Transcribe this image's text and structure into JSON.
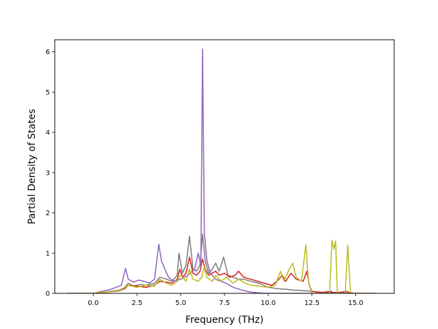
{
  "chart_data": {
    "type": "line",
    "xlabel": "Frequency (THz)",
    "ylabel": "Partial Density of States",
    "xlim": [
      -2.2,
      17.2
    ],
    "ylim": [
      0,
      6.3
    ],
    "x_ticks": [
      0.0,
      2.5,
      5.0,
      7.5,
      10.0,
      12.5,
      15.0
    ],
    "x_tick_labels": [
      "0.0",
      "2.5",
      "5.0",
      "7.5",
      "10.0",
      "12.5",
      "15.0"
    ],
    "y_ticks": [
      0,
      1,
      2,
      3,
      4,
      5,
      6
    ],
    "y_tick_labels": [
      "0",
      "1",
      "2",
      "3",
      "4",
      "5",
      "6"
    ],
    "grid": false,
    "legend": "none",
    "series": [
      {
        "color": "#7f7f7f",
        "points": [
          [
            -1.5,
            0
          ],
          [
            0,
            0
          ],
          [
            0.5,
            0.02
          ],
          [
            1.0,
            0.05
          ],
          [
            1.5,
            0.08
          ],
          [
            1.8,
            0.15
          ],
          [
            2.0,
            0.25
          ],
          [
            2.3,
            0.18
          ],
          [
            2.7,
            0.22
          ],
          [
            3.0,
            0.2
          ],
          [
            3.5,
            0.25
          ],
          [
            3.8,
            0.4
          ],
          [
            4.2,
            0.35
          ],
          [
            4.5,
            0.3
          ],
          [
            4.8,
            0.45
          ],
          [
            4.9,
            1.0
          ],
          [
            5.1,
            0.5
          ],
          [
            5.3,
            0.7
          ],
          [
            5.5,
            1.42
          ],
          [
            5.7,
            0.6
          ],
          [
            5.9,
            0.55
          ],
          [
            6.1,
            0.7
          ],
          [
            6.25,
            1.47
          ],
          [
            6.4,
            0.8
          ],
          [
            6.6,
            0.5
          ],
          [
            6.8,
            0.6
          ],
          [
            7.0,
            0.75
          ],
          [
            7.2,
            0.55
          ],
          [
            7.45,
            0.9
          ],
          [
            7.7,
            0.45
          ],
          [
            8.0,
            0.4
          ],
          [
            8.3,
            0.35
          ],
          [
            8.6,
            0.35
          ],
          [
            9.0,
            0.3
          ],
          [
            9.5,
            0.25
          ],
          [
            10.0,
            0.15
          ],
          [
            10.5,
            0.12
          ],
          [
            11.0,
            0.1
          ],
          [
            11.5,
            0.08
          ],
          [
            12.0,
            0.07
          ],
          [
            12.5,
            0.05
          ],
          [
            13.0,
            0.03
          ],
          [
            13.5,
            0.02
          ],
          [
            14.0,
            0.02
          ],
          [
            14.5,
            0.01
          ],
          [
            15.0,
            0.0
          ],
          [
            16.2,
            0
          ]
        ]
      },
      {
        "color": "#d62728",
        "points": [
          [
            -1.5,
            0
          ],
          [
            0,
            0
          ],
          [
            0.5,
            0.02
          ],
          [
            1.0,
            0.04
          ],
          [
            1.5,
            0.06
          ],
          [
            1.8,
            0.12
          ],
          [
            2.0,
            0.2
          ],
          [
            2.5,
            0.18
          ],
          [
            3.0,
            0.15
          ],
          [
            3.5,
            0.2
          ],
          [
            3.8,
            0.3
          ],
          [
            4.2,
            0.28
          ],
          [
            4.5,
            0.25
          ],
          [
            4.8,
            0.35
          ],
          [
            4.95,
            0.6
          ],
          [
            5.1,
            0.4
          ],
          [
            5.3,
            0.5
          ],
          [
            5.5,
            0.9
          ],
          [
            5.7,
            0.5
          ],
          [
            5.9,
            0.45
          ],
          [
            6.1,
            0.55
          ],
          [
            6.25,
            0.85
          ],
          [
            6.4,
            0.6
          ],
          [
            6.6,
            0.45
          ],
          [
            6.8,
            0.5
          ],
          [
            7.0,
            0.55
          ],
          [
            7.2,
            0.45
          ],
          [
            7.5,
            0.5
          ],
          [
            7.8,
            0.4
          ],
          [
            8.1,
            0.45
          ],
          [
            8.3,
            0.55
          ],
          [
            8.6,
            0.4
          ],
          [
            9.0,
            0.35
          ],
          [
            9.4,
            0.3
          ],
          [
            9.8,
            0.25
          ],
          [
            10.2,
            0.2
          ],
          [
            10.5,
            0.3
          ],
          [
            10.8,
            0.45
          ],
          [
            11.0,
            0.3
          ],
          [
            11.3,
            0.5
          ],
          [
            11.6,
            0.35
          ],
          [
            12.0,
            0.3
          ],
          [
            12.2,
            0.55
          ],
          [
            12.35,
            0.2
          ],
          [
            12.5,
            0.05
          ],
          [
            13.0,
            0.02
          ],
          [
            13.6,
            0.05
          ],
          [
            13.7,
            0.02
          ],
          [
            14.0,
            0.02
          ],
          [
            14.5,
            0.05
          ],
          [
            14.6,
            0.02
          ],
          [
            15.0,
            0
          ],
          [
            16.2,
            0
          ]
        ]
      },
      {
        "color": "#9467bd",
        "points": [
          [
            -1.5,
            0
          ],
          [
            0,
            0
          ],
          [
            0.5,
            0.05
          ],
          [
            1.0,
            0.1
          ],
          [
            1.3,
            0.15
          ],
          [
            1.6,
            0.2
          ],
          [
            1.85,
            0.62
          ],
          [
            2.0,
            0.35
          ],
          [
            2.3,
            0.28
          ],
          [
            2.6,
            0.33
          ],
          [
            2.9,
            0.3
          ],
          [
            3.2,
            0.25
          ],
          [
            3.5,
            0.35
          ],
          [
            3.75,
            1.22
          ],
          [
            3.9,
            0.8
          ],
          [
            4.1,
            0.6
          ],
          [
            4.3,
            0.4
          ],
          [
            4.6,
            0.3
          ],
          [
            5.0,
            0.35
          ],
          [
            5.4,
            0.45
          ],
          [
            5.8,
            0.6
          ],
          [
            6.0,
            1.0
          ],
          [
            6.15,
            0.7
          ],
          [
            6.25,
            6.07
          ],
          [
            6.35,
            1.5
          ],
          [
            6.5,
            0.8
          ],
          [
            6.7,
            0.5
          ],
          [
            7.0,
            0.35
          ],
          [
            7.3,
            0.3
          ],
          [
            7.6,
            0.25
          ],
          [
            8.0,
            0.15
          ],
          [
            8.5,
            0.08
          ],
          [
            9.0,
            0.03
          ],
          [
            9.5,
            0.01
          ],
          [
            10.0,
            0
          ],
          [
            16.2,
            0
          ]
        ]
      },
      {
        "color": "#bcbd22",
        "points": [
          [
            -1.5,
            0
          ],
          [
            0,
            0
          ],
          [
            0.5,
            0.02
          ],
          [
            1.0,
            0.04
          ],
          [
            1.5,
            0.06
          ],
          [
            1.8,
            0.15
          ],
          [
            2.0,
            0.2
          ],
          [
            2.5,
            0.15
          ],
          [
            3.0,
            0.2
          ],
          [
            3.5,
            0.18
          ],
          [
            3.8,
            0.35
          ],
          [
            4.2,
            0.25
          ],
          [
            4.5,
            0.2
          ],
          [
            4.8,
            0.3
          ],
          [
            5.0,
            0.45
          ],
          [
            5.3,
            0.3
          ],
          [
            5.5,
            0.6
          ],
          [
            5.7,
            0.35
          ],
          [
            6.0,
            0.3
          ],
          [
            6.2,
            0.4
          ],
          [
            6.35,
            0.65
          ],
          [
            6.5,
            0.4
          ],
          [
            6.8,
            0.3
          ],
          [
            7.0,
            0.45
          ],
          [
            7.3,
            0.3
          ],
          [
            7.6,
            0.4
          ],
          [
            8.0,
            0.25
          ],
          [
            8.3,
            0.35
          ],
          [
            8.7,
            0.25
          ],
          [
            9.0,
            0.2
          ],
          [
            9.5,
            0.18
          ],
          [
            10.0,
            0.15
          ],
          [
            10.4,
            0.2
          ],
          [
            10.7,
            0.55
          ],
          [
            10.9,
            0.3
          ],
          [
            11.2,
            0.6
          ],
          [
            11.4,
            0.75
          ],
          [
            11.6,
            0.4
          ],
          [
            11.9,
            0.3
          ],
          [
            12.15,
            1.2
          ],
          [
            12.3,
            0.3
          ],
          [
            12.5,
            0
          ],
          [
            13.5,
            0
          ],
          [
            13.65,
            1.32
          ],
          [
            13.75,
            1.1
          ],
          [
            13.85,
            1.3
          ],
          [
            13.95,
            0
          ],
          [
            14.4,
            0
          ],
          [
            14.55,
            1.2
          ],
          [
            14.7,
            0
          ],
          [
            16.2,
            0
          ]
        ]
      }
    ]
  }
}
